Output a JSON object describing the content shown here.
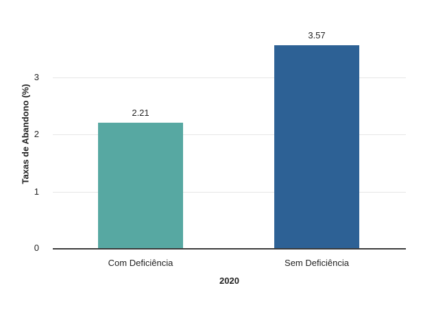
{
  "chart_data": {
    "type": "bar",
    "categories": [
      "Com Deficiência",
      "Sem Deficiência"
    ],
    "values": [
      2.21,
      3.57
    ],
    "value_labels": [
      "2.21",
      "3.57"
    ],
    "colors": [
      "#57A8A2",
      "#2D6195"
    ],
    "title": "",
    "xlabel": "2020",
    "ylabel": "Taxas de Abandono (%)",
    "ylim": [
      0,
      4
    ],
    "yticks": [
      0,
      1,
      2,
      3
    ],
    "grid": true,
    "legend": "none",
    "background": "#ffffff"
  }
}
